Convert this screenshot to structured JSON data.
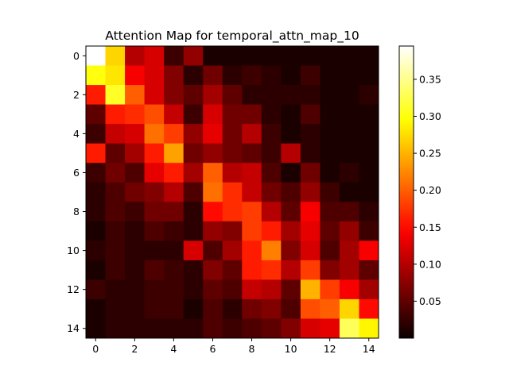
{
  "chart_data": {
    "type": "heatmap",
    "title": "Attention Map for temporal_attn_map_10",
    "colormap": "hot",
    "vmin": 0.0,
    "vmax": 0.395,
    "x_ticks": [
      0,
      2,
      4,
      6,
      8,
      10,
      12,
      14
    ],
    "y_ticks": [
      0,
      2,
      4,
      6,
      8,
      10,
      12,
      14
    ],
    "colorbar_ticks": [
      "0.05",
      "0.10",
      "0.15",
      "0.20",
      "0.25",
      "0.30",
      "0.35"
    ],
    "colorbar_tick_values": [
      0.05,
      0.1,
      0.15,
      0.2,
      0.25,
      0.3,
      0.35
    ],
    "matrix": [
      [
        0.395,
        0.27,
        0.1,
        0.12,
        0.03,
        0.08,
        0.01,
        0.01,
        0.01,
        0.01,
        0.01,
        0.01,
        0.01,
        0.01,
        0.01
      ],
      [
        0.3,
        0.28,
        0.14,
        0.12,
        0.07,
        0.02,
        0.06,
        0.02,
        0.03,
        0.02,
        0.01,
        0.03,
        0.01,
        0.01,
        0.01
      ],
      [
        0.16,
        0.31,
        0.2,
        0.12,
        0.07,
        0.05,
        0.09,
        0.05,
        0.02,
        0.02,
        0.02,
        0.02,
        0.01,
        0.01,
        0.02
      ],
      [
        0.05,
        0.16,
        0.17,
        0.19,
        0.11,
        0.03,
        0.12,
        0.06,
        0.06,
        0.02,
        0.01,
        0.04,
        0.01,
        0.01,
        0.01
      ],
      [
        0.03,
        0.11,
        0.12,
        0.21,
        0.18,
        0.08,
        0.13,
        0.06,
        0.1,
        0.03,
        0.01,
        0.02,
        0.01,
        0.01,
        0.01
      ],
      [
        0.16,
        0.05,
        0.09,
        0.16,
        0.24,
        0.06,
        0.08,
        0.06,
        0.05,
        0.03,
        0.1,
        0.02,
        0.01,
        0.01,
        0.01
      ],
      [
        0.03,
        0.06,
        0.04,
        0.13,
        0.16,
        0.09,
        0.2,
        0.1,
        0.11,
        0.04,
        0.01,
        0.06,
        0.01,
        0.02,
        0.01
      ],
      [
        0.02,
        0.04,
        0.06,
        0.07,
        0.1,
        0.04,
        0.21,
        0.17,
        0.11,
        0.06,
        0.04,
        0.08,
        0.03,
        0.01,
        0.01
      ],
      [
        0.02,
        0.04,
        0.03,
        0.06,
        0.06,
        0.02,
        0.15,
        0.17,
        0.18,
        0.1,
        0.05,
        0.14,
        0.04,
        0.04,
        0.02
      ],
      [
        0.01,
        0.03,
        0.02,
        0.04,
        0.03,
        0.02,
        0.08,
        0.07,
        0.18,
        0.16,
        0.09,
        0.13,
        0.05,
        0.08,
        0.03
      ],
      [
        0.02,
        0.03,
        0.02,
        0.02,
        0.02,
        0.12,
        0.04,
        0.09,
        0.16,
        0.22,
        0.07,
        0.12,
        0.04,
        0.09,
        0.14
      ],
      [
        0.01,
        0.03,
        0.02,
        0.04,
        0.03,
        0.02,
        0.07,
        0.05,
        0.16,
        0.17,
        0.1,
        0.18,
        0.07,
        0.09,
        0.05
      ],
      [
        0.03,
        0.02,
        0.02,
        0.03,
        0.03,
        0.02,
        0.05,
        0.04,
        0.11,
        0.1,
        0.05,
        0.25,
        0.18,
        0.14,
        0.09
      ],
      [
        0.01,
        0.02,
        0.02,
        0.03,
        0.03,
        0.01,
        0.04,
        0.02,
        0.06,
        0.07,
        0.04,
        0.19,
        0.2,
        0.27,
        0.15
      ],
      [
        0.01,
        0.02,
        0.02,
        0.02,
        0.02,
        0.02,
        0.04,
        0.03,
        0.04,
        0.05,
        0.07,
        0.12,
        0.13,
        0.33,
        0.29
      ]
    ]
  }
}
